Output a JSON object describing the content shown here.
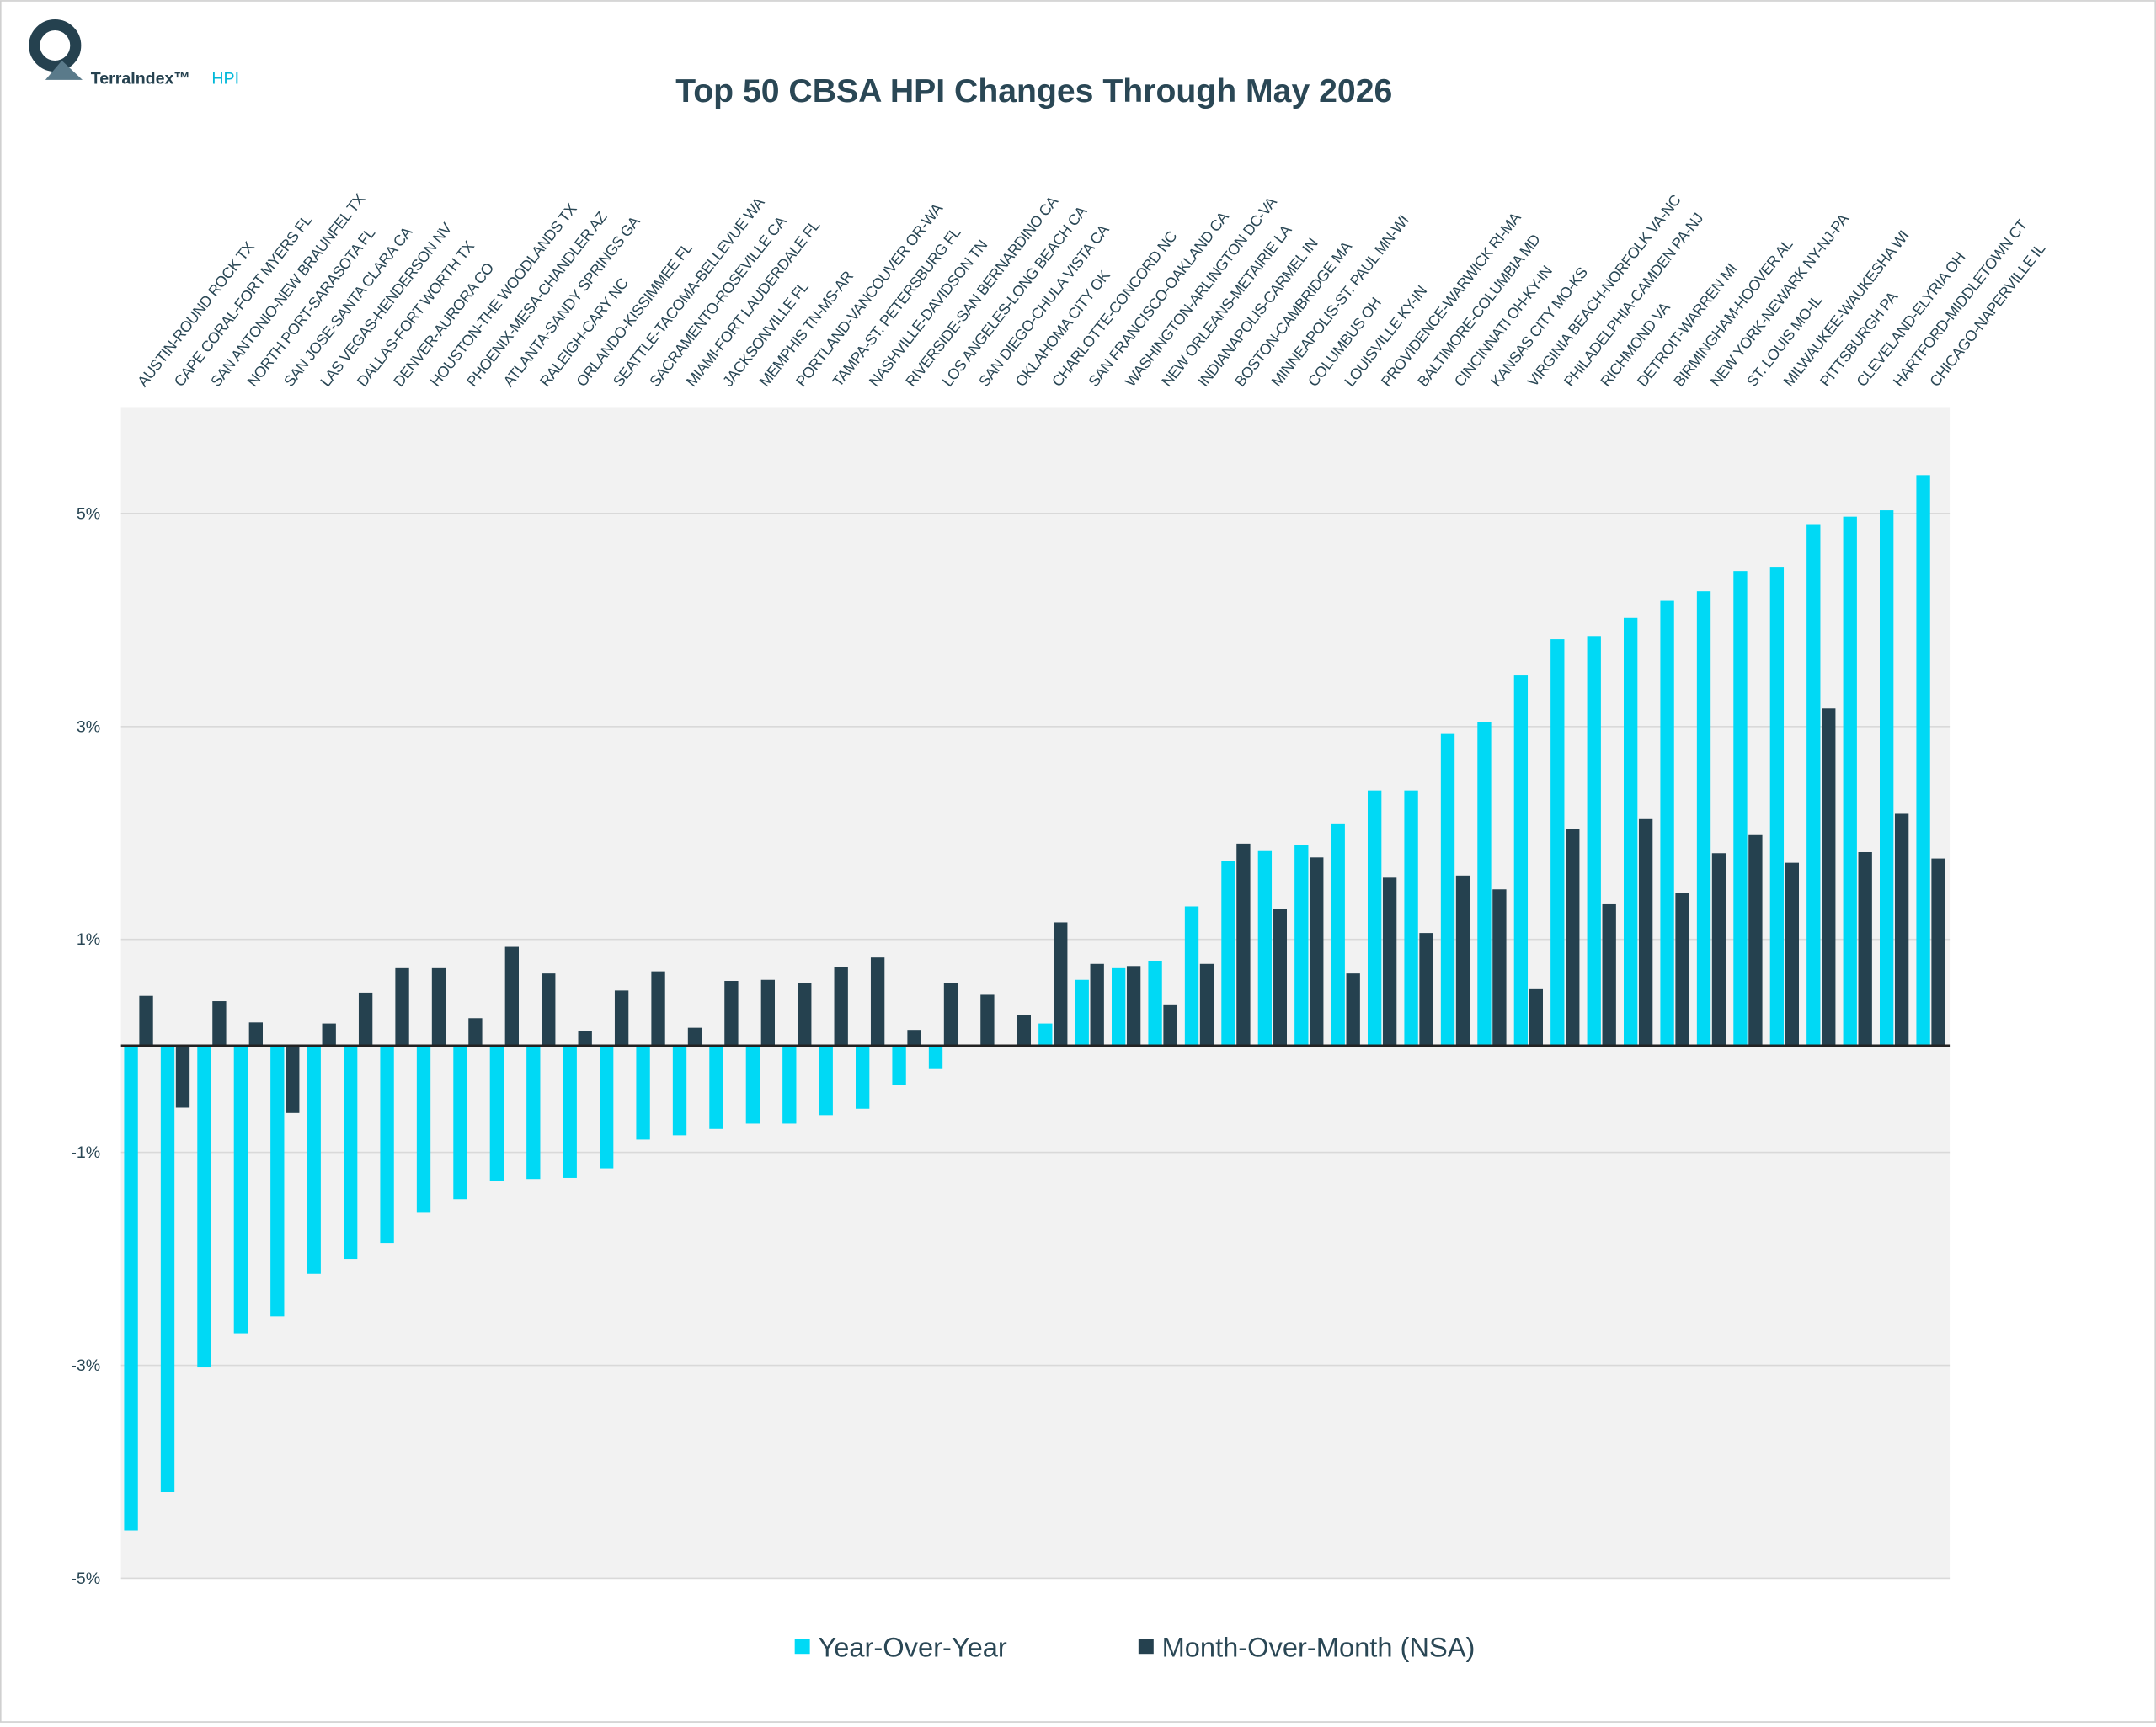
{
  "logo": {
    "brand": "TerraIndex™",
    "product": "HPI"
  },
  "chart_data": {
    "type": "bar",
    "title": "Top 50 CBSA HPI Changes Through May 2026",
    "categories": [
      "AUSTIN-ROUND ROCK TX",
      "CAPE CORAL-FORT MYERS FL",
      "SAN ANTONIO-NEW BRAUNFEL TX",
      "NORTH PORT-SARASOTA FL",
      "SAN JOSE-SANTA CLARA CA",
      "LAS VEGAS-HENDERSON NV",
      "DALLAS-FORT WORTH TX",
      "DENVER-AURORA CO",
      "HOUSTON-THE WOODLANDS TX",
      "PHOENIX-MESA-CHANDLER AZ",
      "ATLANTA-SANDY SPRINGS GA",
      "RALEIGH-CARY NC",
      "ORLANDO-KISSIMMEE FL",
      "SEATTLE-TACOMA-BELLEVUE WA",
      "SACRAMENTO-ROSEVILLE CA",
      "MIAMI-FORT LAUDERDALE FL",
      "JACKSONVILLE FL",
      "MEMPHIS TN-MS-AR",
      "PORTLAND-VANCOUVER OR-WA",
      "TAMPA-ST. PETERSBURG FL",
      "NASHVILLE-DAVIDSON TN",
      "RIVERSIDE-SAN BERNARDINO CA",
      "LOS ANGELES-LONG BEACH CA",
      "SAN DIEGO-CHULA VISTA CA",
      "OKLAHOMA CITY OK",
      "CHARLOTTE-CONCORD NC",
      "SAN FRANCISCO-OAKLAND CA",
      "WASHINGTON-ARLINGTON DC-VA",
      "NEW ORLEANS-METAIRIE LA",
      "INDIANAPOLIS-CARMEL IN",
      "BOSTON-CAMBRIDGE MA",
      "MINNEAPOLIS-ST. PAUL MN-WI",
      "COLUMBUS OH",
      "LOUISVILLE KY-IN",
      "PROVIDENCE-WARWICK RI-MA",
      "BALTIMORE-COLUMBIA MD",
      "CINCINNATI OH-KY-IN",
      "KANSAS CITY MO-KS",
      "VIRGINIA BEACH-NORFOLK VA-NC",
      "PHILADELPHIA-CAMDEN PA-NJ",
      "RICHMOND VA",
      "DETROIT-WARREN MI",
      "BIRMINGHAM-HOOVER AL",
      "NEW YORK-NEWARK NY-NJ-PA",
      "ST. LOUIS MO-IL",
      "MILWAUKEE-WAUKESHA WI",
      "PITTSBURGH PA",
      "CLEVELAND-ELYRIA OH",
      "HARTFORD-MIDDLETOWN CT",
      "CHICAGO-NAPERVILLE IL"
    ],
    "series": [
      {
        "name": "Year-Over-Year",
        "color": "#00d9f5",
        "values": [
          -4.55,
          -4.19,
          -3.02,
          -2.7,
          -2.54,
          -2.14,
          -2.0,
          -1.85,
          -1.56,
          -1.44,
          -1.27,
          -1.25,
          -1.24,
          -1.15,
          -0.88,
          -0.84,
          -0.78,
          -0.73,
          -0.73,
          -0.65,
          -0.59,
          -0.37,
          -0.21,
          0,
          0,
          0.21,
          0.62,
          0.73,
          0.8,
          1.31,
          1.74,
          1.83,
          1.89,
          2.09,
          2.4,
          2.4,
          2.93,
          3.04,
          3.48,
          3.82,
          3.85,
          4.02,
          4.18,
          4.27,
          4.46,
          4.5,
          4.9,
          4.97,
          5.03,
          5.36
        ]
      },
      {
        "name": "Month-Over-Month (NSA)",
        "color": "#25414f",
        "values": [
          0.47,
          -0.58,
          0.42,
          0.22,
          -0.63,
          0.21,
          0.5,
          0.73,
          0.73,
          0.26,
          0.93,
          0.68,
          0.14,
          0.52,
          0.7,
          0.17,
          0.61,
          0.62,
          0.59,
          0.74,
          0.83,
          0.15,
          0.59,
          0.48,
          0.29,
          1.16,
          0.77,
          0.75,
          0.39,
          0.77,
          1.9,
          1.29,
          1.77,
          0.68,
          1.58,
          1.06,
          1.6,
          1.47,
          0.54,
          2.04,
          1.33,
          2.13,
          1.44,
          1.81,
          1.98,
          1.72,
          3.17,
          1.82,
          2.18,
          1.76
        ]
      }
    ],
    "ylim": [
      -5,
      6
    ],
    "yticks": [
      {
        "value": -5,
        "label": "-5%"
      },
      {
        "value": -3,
        "label": "-3%"
      },
      {
        "value": -1,
        "label": "-1%"
      },
      {
        "value": 1,
        "label": "1%"
      },
      {
        "value": 3,
        "label": "3%"
      },
      {
        "value": 5,
        "label": "5%"
      }
    ],
    "grid": true,
    "legend": "bottom"
  }
}
